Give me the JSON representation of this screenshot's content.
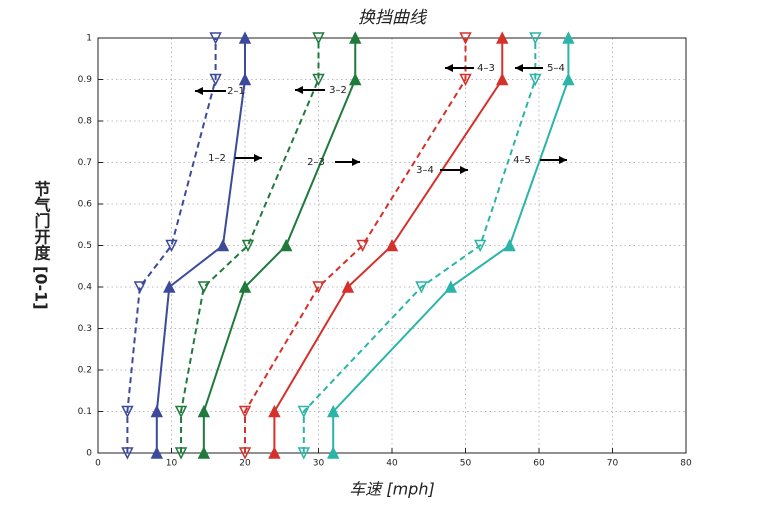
{
  "chart_data": {
    "type": "line",
    "title": "换挡曲线",
    "xlabel": "车速 [mph]",
    "ylabel": "节气门开度 [0-1]",
    "xlim": [
      0,
      80
    ],
    "xticks": [
      0,
      10,
      20,
      30,
      40,
      50,
      60,
      70,
      80
    ],
    "ylim": [
      0,
      1
    ],
    "yticks": [
      0,
      0.1,
      0.2,
      0.3,
      0.4,
      0.5,
      0.6,
      0.7,
      0.8,
      0.9,
      1
    ],
    "grid": true,
    "series": [
      {
        "name": "1–2",
        "color": "#3c4a9a",
        "style": "solid",
        "x": [
          8,
          8,
          9.7,
          17,
          20,
          20
        ],
        "values": [
          0,
          0.1,
          0.4,
          0.5,
          0.9,
          1
        ]
      },
      {
        "name": "2–1",
        "color": "#3c4a9a",
        "style": "dashed",
        "x": [
          4,
          4,
          5.7,
          10,
          16,
          16
        ],
        "values": [
          0,
          0.1,
          0.4,
          0.5,
          0.9,
          1
        ]
      },
      {
        "name": "2–3",
        "color": "#1f7a3c",
        "style": "solid",
        "x": [
          14.4,
          14.4,
          20,
          25.6,
          35,
          35
        ],
        "values": [
          0,
          0.1,
          0.4,
          0.5,
          0.9,
          1
        ]
      },
      {
        "name": "3–2",
        "color": "#1f7a3c",
        "style": "dashed",
        "x": [
          11.3,
          11.3,
          14.4,
          20.4,
          30,
          30
        ],
        "values": [
          0,
          0.1,
          0.4,
          0.5,
          0.9,
          1
        ]
      },
      {
        "name": "3–4",
        "color": "#d6302a",
        "style": "solid",
        "x": [
          24,
          24,
          34,
          40,
          55,
          55
        ],
        "values": [
          0,
          0.1,
          0.4,
          0.5,
          0.9,
          1
        ]
      },
      {
        "name": "4–3",
        "color": "#d6302a",
        "style": "dashed",
        "x": [
          20,
          20,
          30,
          36,
          50,
          50
        ],
        "values": [
          0,
          0.1,
          0.4,
          0.5,
          0.9,
          1
        ]
      },
      {
        "name": "4–5",
        "color": "#2ab5a8",
        "style": "solid",
        "x": [
          32,
          32,
          48,
          56,
          64,
          64
        ],
        "values": [
          0,
          0.1,
          0.4,
          0.5,
          0.9,
          1
        ]
      },
      {
        "name": "5–4",
        "color": "#2ab5a8",
        "style": "dashed",
        "x": [
          28,
          28,
          44,
          52,
          59.5,
          59.5
        ],
        "values": [
          0,
          0.1,
          0.4,
          0.5,
          0.9,
          1
        ]
      }
    ]
  }
}
